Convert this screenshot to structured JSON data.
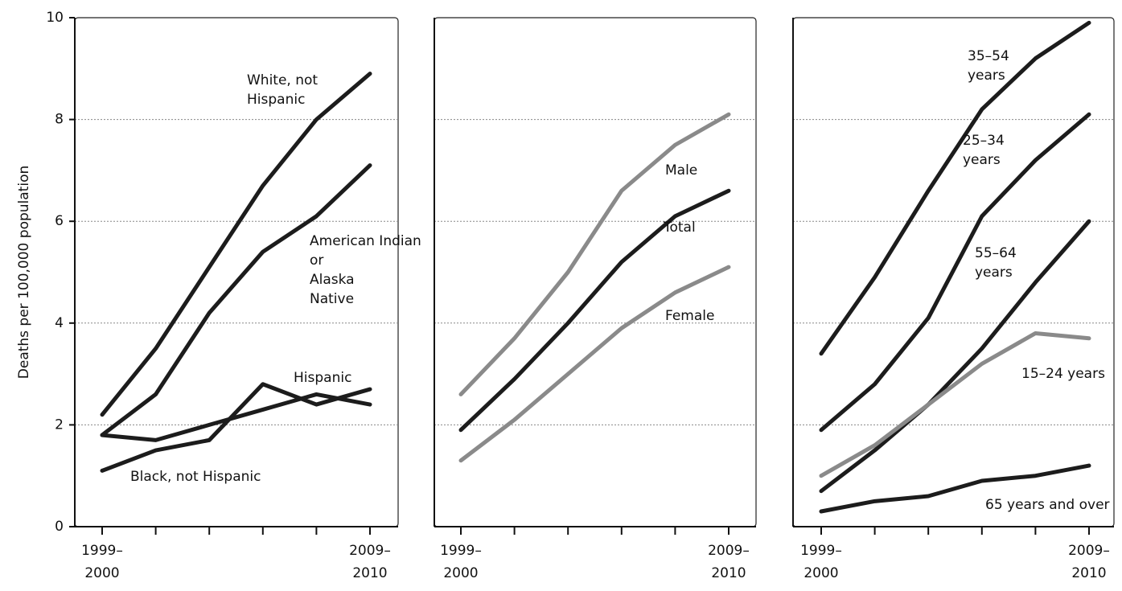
{
  "chart_data": [
    {
      "type": "line",
      "y_label": "Deaths per 100,000 population",
      "categories": [
        "1999–2000",
        null,
        null,
        null,
        null,
        "2009–2010"
      ],
      "ylim": [
        0,
        10
      ],
      "yticks": [
        0,
        2,
        4,
        6,
        8,
        10
      ],
      "grid": true,
      "series": [
        {
          "name": "White, not Hispanic",
          "color": "#1c1c1c",
          "values": [
            2.2,
            3.5,
            5.1,
            6.7,
            8.0,
            8.9
          ]
        },
        {
          "name": "American Indian or Alaska Native",
          "color": "#1c1c1c",
          "values": [
            1.8,
            2.6,
            4.2,
            5.4,
            6.1,
            7.1
          ]
        },
        {
          "name": "Hispanic",
          "color": "#1c1c1c",
          "values": [
            1.8,
            1.7,
            2.0,
            2.3,
            2.6,
            2.4
          ]
        },
        {
          "name": "Black, not Hispanic",
          "color": "#1c1c1c",
          "values": [
            1.1,
            1.5,
            1.7,
            2.8,
            2.4,
            2.7
          ]
        }
      ]
    },
    {
      "type": "line",
      "categories": [
        "1999–2000",
        null,
        null,
        null,
        null,
        "2009–2010"
      ],
      "ylim": [
        0,
        10
      ],
      "yticks": [
        2,
        4,
        6,
        8
      ],
      "ytick_labels": false,
      "grid": true,
      "series": [
        {
          "name": "Male",
          "color": "#8a8a8a",
          "values": [
            2.6,
            3.7,
            5.0,
            6.6,
            7.5,
            8.1
          ]
        },
        {
          "name": "Total",
          "color": "#1c1c1c",
          "values": [
            1.9,
            2.9,
            4.0,
            5.2,
            6.1,
            6.6
          ]
        },
        {
          "name": "Female",
          "color": "#8a8a8a",
          "values": [
            1.3,
            2.1,
            3.0,
            3.9,
            4.6,
            5.1
          ]
        }
      ]
    },
    {
      "type": "line",
      "categories": [
        "1999–2000",
        null,
        null,
        null,
        null,
        "2009–2010"
      ],
      "ylim": [
        0,
        10
      ],
      "yticks": [
        2,
        4,
        6,
        8
      ],
      "ytick_labels": false,
      "grid": true,
      "series": [
        {
          "name": "35–54 years",
          "color": "#1c1c1c",
          "values": [
            3.4,
            4.9,
            6.6,
            8.2,
            9.2,
            9.9
          ]
        },
        {
          "name": "25–34 years",
          "color": "#1c1c1c",
          "values": [
            1.9,
            2.8,
            4.1,
            6.1,
            7.2,
            8.1
          ]
        },
        {
          "name": "55–64 years",
          "color": "#1c1c1c",
          "values": [
            0.7,
            1.5,
            2.4,
            3.5,
            4.8,
            6.0
          ]
        },
        {
          "name": "15–24 years",
          "color": "#8a8a8a",
          "values": [
            1.0,
            1.6,
            2.4,
            3.2,
            3.8,
            3.7
          ]
        },
        {
          "name": "65 years and over",
          "color": "#1c1c1c",
          "values": [
            0.3,
            0.5,
            0.6,
            0.9,
            1.0,
            1.2
          ]
        }
      ]
    }
  ]
}
